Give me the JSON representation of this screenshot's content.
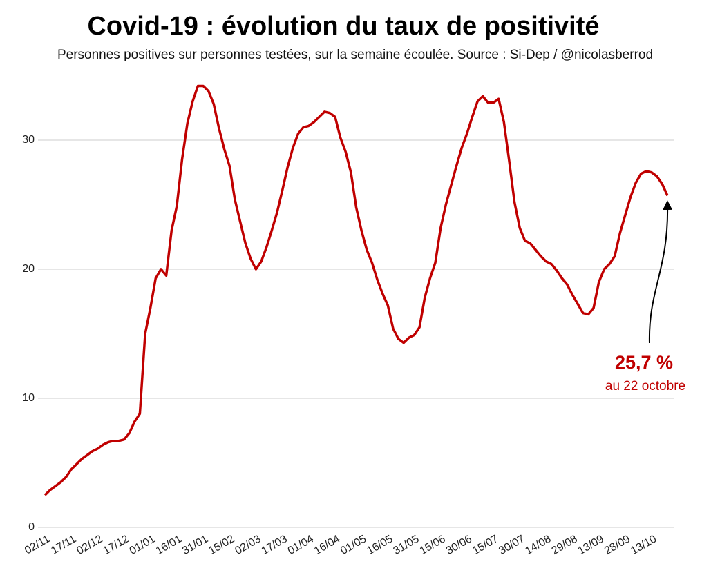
{
  "chart_data": {
    "type": "line",
    "title": "Covid-19 : évolution du taux de positivité",
    "subtitle": "Personnes positives sur personnes testées, sur la semaine écoulée. Source : Si-Dep / @nicolasberrod",
    "categories": [
      "02/11",
      null,
      null,
      null,
      null,
      "17/11",
      null,
      null,
      null,
      null,
      "02/12",
      null,
      null,
      null,
      null,
      "17/12",
      null,
      null,
      null,
      null,
      "01/01",
      null,
      null,
      null,
      null,
      "16/01",
      null,
      null,
      null,
      null,
      "31/01",
      null,
      null,
      null,
      null,
      "15/02",
      null,
      null,
      null,
      null,
      "02/03",
      null,
      null,
      null,
      null,
      "17/03",
      null,
      null,
      null,
      null,
      "01/04",
      null,
      null,
      null,
      null,
      "16/04",
      null,
      null,
      null,
      null,
      "01/05",
      null,
      null,
      null,
      null,
      "16/05",
      null,
      null,
      null,
      null,
      "31/05",
      null,
      null,
      null,
      null,
      "15/06",
      null,
      null,
      null,
      null,
      "30/06",
      null,
      null,
      null,
      null,
      "15/07",
      null,
      null,
      null,
      null,
      "30/07",
      null,
      null,
      null,
      null,
      "14/08",
      null,
      null,
      null,
      null,
      "29/08",
      null,
      null,
      null,
      null,
      "13/09",
      null,
      null,
      null,
      null,
      "28/09",
      null,
      null,
      null,
      null,
      "13/10",
      null,
      null,
      null
    ],
    "series": [
      {
        "name": "Taux de positivité",
        "color": "#c00000",
        "values": [
          2.5,
          2.9,
          3.2,
          3.5,
          3.9,
          4.5,
          4.9,
          5.3,
          5.6,
          5.9,
          6.1,
          6.4,
          6.6,
          6.7,
          6.7,
          6.8,
          7.3,
          8.2,
          8.8,
          15.0,
          17.0,
          19.3,
          20.0,
          19.5,
          23.0,
          24.9,
          28.5,
          31.3,
          33.0,
          34.2,
          34.2,
          33.8,
          32.8,
          30.9,
          29.3,
          28.0,
          25.4,
          23.7,
          22.0,
          20.8,
          20.0,
          20.6,
          21.7,
          23.0,
          24.4,
          26.1,
          27.9,
          29.4,
          30.5,
          31.0,
          31.1,
          31.4,
          31.8,
          32.2,
          32.1,
          31.8,
          30.2,
          29.1,
          27.5,
          24.8,
          23.0,
          21.5,
          20.5,
          19.2,
          18.1,
          17.2,
          15.4,
          14.6,
          14.3,
          14.7,
          14.9,
          15.5,
          17.8,
          19.3,
          20.5,
          23.2,
          25.0,
          26.5,
          28.0,
          29.4,
          30.5,
          31.8,
          33.0,
          33.4,
          32.9,
          32.9,
          33.2,
          31.4,
          28.4,
          25.2,
          23.2,
          22.2,
          22.0,
          21.5,
          21.0,
          20.6,
          20.4,
          19.9,
          19.3,
          18.8,
          18.0,
          17.3,
          16.6,
          16.5,
          17.0,
          19.0,
          20.0,
          20.4,
          21.0,
          22.8,
          24.2,
          25.6,
          26.7,
          27.4,
          27.6,
          27.5,
          27.2,
          26.6,
          25.7
        ]
      }
    ],
    "ylim": [
      0,
      35
    ],
    "yticks": [
      0,
      10,
      20,
      30
    ],
    "grid": true,
    "annotation": {
      "label": "25,7 %",
      "note": "au 22 octobre"
    }
  }
}
